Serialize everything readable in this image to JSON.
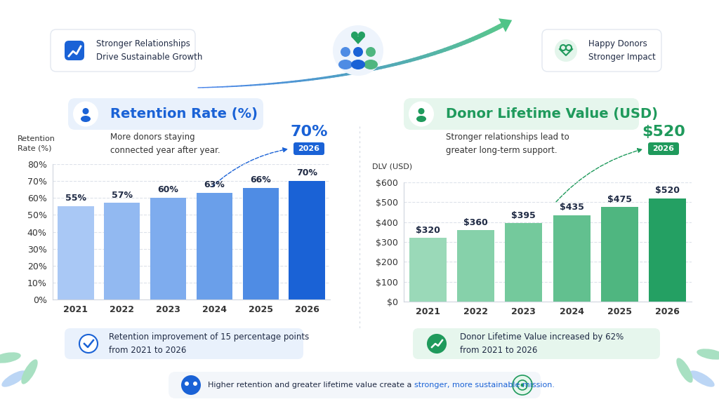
{
  "header": {
    "left_badge": "Stronger Relationships\nDrive Sustainable Growth",
    "right_badge": "Happy Donors\nStronger Impact"
  },
  "chart_data": [
    {
      "type": "bar",
      "title": "Retention Rate (%)",
      "subtitle": "More donors staying\nconnected year after year.",
      "y_label": "Retention\nRate (%)",
      "categories": [
        "2021",
        "2022",
        "2023",
        "2024",
        "2025",
        "2026"
      ],
      "values": [
        55,
        57,
        60,
        63,
        66,
        70
      ],
      "value_labels": [
        "55%",
        "57%",
        "60%",
        "63%",
        "66%",
        "70%"
      ],
      "colors": [
        "#a9c8f5",
        "#92b9f1",
        "#7eacee",
        "#6a9fea",
        "#4f8ce4",
        "#1a62d6"
      ],
      "ylim": [
        0,
        80
      ],
      "yticks": [
        {
          "value": 0,
          "label": "0%"
        },
        {
          "value": 10,
          "label": "10%"
        },
        {
          "value": 20,
          "label": "20%"
        },
        {
          "value": 30,
          "label": "30%"
        },
        {
          "value": 40,
          "label": "40%"
        },
        {
          "value": 50,
          "label": "50%"
        },
        {
          "value": 60,
          "label": "60%"
        },
        {
          "value": 70,
          "label": "70%"
        },
        {
          "value": 80,
          "label": "80%"
        }
      ],
      "grid": true,
      "data_labels": true,
      "annotation": {
        "text": "70%",
        "tag": "2026"
      },
      "note": "Retention improvement of 15 percentage points\nfrom 2021 to 2026"
    },
    {
      "type": "bar",
      "title": "Donor Lifetime Value (USD)",
      "subtitle": "Stronger relationships lead to\ngreater long-term support.",
      "y_label": "DLV (USD)",
      "categories": [
        "2021",
        "2022",
        "2023",
        "2024",
        "2025",
        "2026"
      ],
      "values": [
        320,
        360,
        395,
        435,
        475,
        520
      ],
      "value_labels": [
        "$320",
        "$360",
        "$395",
        "$435",
        "$475",
        "$520"
      ],
      "colors": [
        "#9ad9b8",
        "#86d1aa",
        "#74c99c",
        "#62c08f",
        "#4fb680",
        "#24a063"
      ],
      "ylim": [
        0,
        600
      ],
      "yticks": [
        {
          "value": 0,
          "label": "$0"
        },
        {
          "value": 100,
          "label": "$100"
        },
        {
          "value": 200,
          "label": "$200"
        },
        {
          "value": 300,
          "label": "$300"
        },
        {
          "value": 400,
          "label": "$400"
        },
        {
          "value": 500,
          "label": "$500"
        },
        {
          "value": 600,
          "label": "$600"
        }
      ],
      "grid": true,
      "data_labels": true,
      "annotation": {
        "text": "$520",
        "tag": "2026"
      },
      "note": "Donor Lifetime Value increased by 62%\nfrom 2021 to 2026"
    }
  ],
  "footer": {
    "parts": [
      "Higher retention and greater lifetime value create a ",
      "stronger, more sustainable mission."
    ]
  }
}
